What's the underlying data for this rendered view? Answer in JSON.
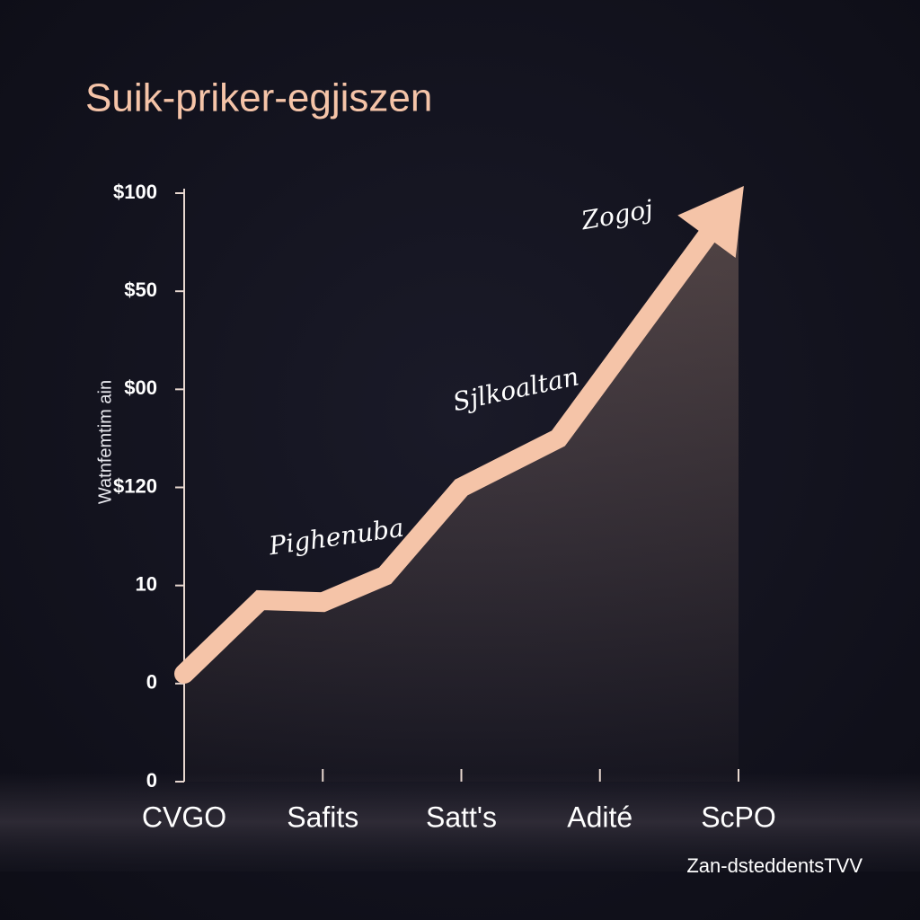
{
  "chart_data": {
    "type": "line",
    "title": "Suik-priker-egjiszen",
    "y_label": "Watnfemtim ain",
    "footer": "Zan-dsteddentsTVV",
    "annotations": [
      "Pighenuba",
      "Sjlkoaltan",
      "Zogoj"
    ],
    "x": [
      0,
      0.55,
      1.0,
      1.45,
      2.0,
      2.7,
      4.0
    ],
    "values": [
      1.1,
      1.85,
      1.83,
      2.1,
      3.0,
      3.5,
      6.0
    ],
    "color": "#f5c4a8",
    "xlim": [
      0,
      4
    ],
    "xticks": [
      {
        "value": 0,
        "label": "CVGO"
      },
      {
        "value": 1,
        "label": "Safits"
      },
      {
        "value": 2,
        "label": "Satt's"
      },
      {
        "value": 3,
        "label": "Adité"
      },
      {
        "value": 4,
        "label": "ScPO"
      }
    ],
    "ylim": [
      0,
      6
    ],
    "yticks": [
      {
        "value": 6,
        "label": "$100"
      },
      {
        "value": 5,
        "label": "$50"
      },
      {
        "value": 4,
        "label": "$00"
      },
      {
        "value": 3,
        "label": "$120"
      },
      {
        "value": 2,
        "label": "10"
      },
      {
        "value": 1,
        "label": "0"
      },
      {
        "value": 0,
        "label": "0"
      }
    ]
  }
}
